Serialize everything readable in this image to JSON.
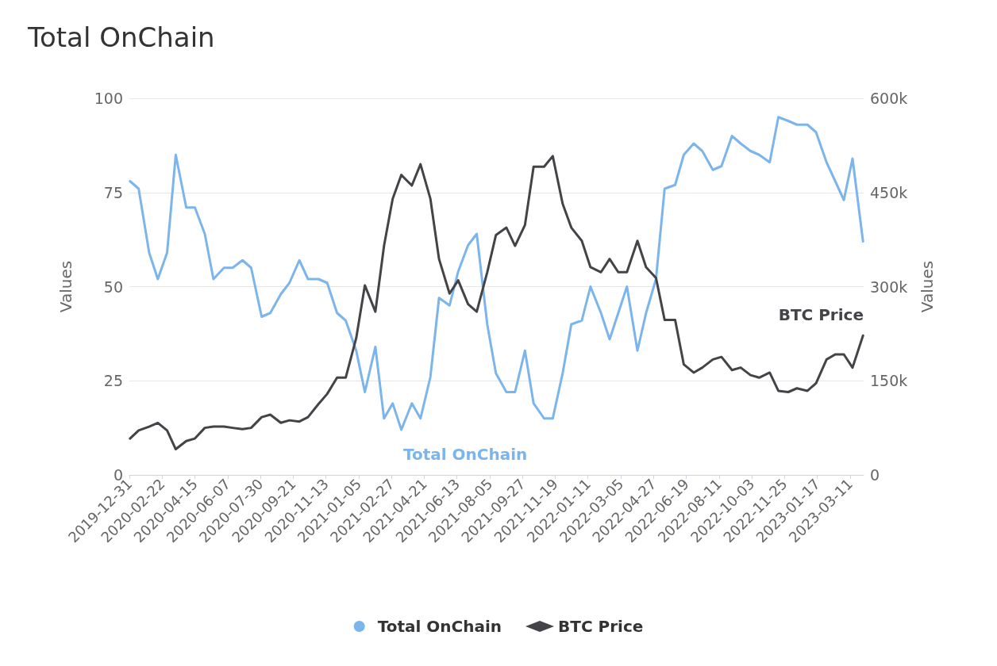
{
  "chart_data": {
    "type": "line",
    "title": "Total OnChain",
    "ylabel": "Values",
    "y2label": "Values",
    "x": [
      "2020-01-01",
      "2020-01-15",
      "2020-02-01",
      "2020-02-15",
      "2020-03-01",
      "2020-03-15",
      "2020-04-01",
      "2020-04-15",
      "2020-05-01",
      "2020-05-15",
      "2020-06-01",
      "2020-06-15",
      "2020-07-01",
      "2020-07-15",
      "2020-08-01",
      "2020-08-15",
      "2020-09-01",
      "2020-09-15",
      "2020-10-01",
      "2020-10-15",
      "2020-11-01",
      "2020-11-15",
      "2020-12-01",
      "2020-12-15",
      "2021-01-01",
      "2021-01-15",
      "2021-02-01",
      "2021-02-15",
      "2021-03-01",
      "2021-03-15",
      "2021-04-01",
      "2021-04-15",
      "2021-05-01",
      "2021-05-15",
      "2021-06-01",
      "2021-06-15",
      "2021-07-01",
      "2021-07-15",
      "2021-08-01",
      "2021-08-15",
      "2021-09-01",
      "2021-09-15",
      "2021-10-01",
      "2021-10-15",
      "2021-11-01",
      "2021-11-15",
      "2021-12-01",
      "2021-12-15",
      "2022-01-01",
      "2022-01-15",
      "2022-02-01",
      "2022-02-15",
      "2022-03-01",
      "2022-03-15",
      "2022-04-01",
      "2022-04-15",
      "2022-05-01",
      "2022-05-15",
      "2022-06-01",
      "2022-06-15",
      "2022-07-01",
      "2022-07-15",
      "2022-08-01",
      "2022-08-15",
      "2022-09-01",
      "2022-09-15",
      "2022-10-01",
      "2022-10-15",
      "2022-11-01",
      "2022-11-15",
      "2022-12-01",
      "2022-12-15",
      "2023-01-01",
      "2023-01-15",
      "2023-02-01",
      "2023-02-15",
      "2023-03-01",
      "2023-03-15",
      "2023-04-01"
    ],
    "series": [
      {
        "name": "Total OnChain",
        "color": "#7cb5ec",
        "values": [
          78,
          76,
          59,
          52,
          59,
          85,
          71,
          71,
          64,
          52,
          55,
          55,
          57,
          55,
          42,
          43,
          48,
          51,
          57,
          52,
          52,
          51,
          43,
          41,
          33,
          22,
          34,
          15,
          19,
          12,
          19,
          15,
          26,
          47,
          45,
          54,
          61,
          64,
          40,
          27,
          22,
          22,
          33,
          19,
          15,
          15,
          27,
          40,
          41,
          50,
          43,
          36,
          43,
          50,
          33,
          43,
          52,
          76,
          77,
          85,
          88,
          86,
          81,
          82,
          90,
          88,
          86,
          85,
          83,
          95,
          94,
          93,
          93,
          91,
          83,
          78,
          73,
          84,
          62
        ]
      },
      {
        "name": "BTC Price",
        "color": "#434348",
        "axis": "y2",
        "values": [
          58000,
          71000,
          77000,
          83000,
          71000,
          41000,
          54000,
          58000,
          75000,
          77000,
          77000,
          75000,
          73000,
          75000,
          92000,
          96000,
          83000,
          87000,
          85000,
          92000,
          113000,
          129000,
          155000,
          155000,
          218000,
          302000,
          260000,
          365000,
          440000,
          478000,
          461000,
          495000,
          440000,
          344000,
          289000,
          310000,
          272000,
          260000,
          323000,
          382000,
          394000,
          365000,
          398000,
          491000,
          491000,
          508000,
          432000,
          394000,
          373000,
          331000,
          323000,
          344000,
          323000,
          323000,
          373000,
          331000,
          314000,
          247000,
          247000,
          176000,
          163000,
          171000,
          184000,
          188000,
          167000,
          171000,
          159000,
          155000,
          163000,
          134000,
          132000,
          138000,
          134000,
          146000,
          184000,
          192000,
          192000,
          171000,
          222000
        ]
      }
    ],
    "xlim": [
      "2019-12-31",
      "2023-04-02"
    ],
    "xticks": [
      "2019-12-31",
      "2020-02-22",
      "2020-04-15",
      "2020-06-07",
      "2020-07-30",
      "2020-09-21",
      "2020-11-13",
      "2021-01-05",
      "2021-02-27",
      "2021-04-21",
      "2021-06-13",
      "2021-08-05",
      "2021-09-27",
      "2021-11-19",
      "2022-01-11",
      "2022-03-05",
      "2022-04-27",
      "2022-06-19",
      "2022-08-11",
      "2022-10-03",
      "2022-11-25",
      "2023-01-17",
      "2023-03-11"
    ],
    "ylim": [
      0,
      100
    ],
    "yticks": [
      0,
      25,
      50,
      75,
      100
    ],
    "y2lim": [
      0,
      600000
    ],
    "y2ticks": [
      0,
      {
        "value": 150000,
        "label": "150k"
      },
      {
        "value": 300000,
        "label": "300k"
      },
      {
        "value": 450000,
        "label": "450k"
      },
      {
        "value": 600000,
        "label": "600k"
      }
    ],
    "annotations": [
      "Total OnChain",
      "BTC Price"
    ],
    "grid": "y",
    "legend": "bottom",
    "marker": "none",
    "line_style": "solid"
  }
}
